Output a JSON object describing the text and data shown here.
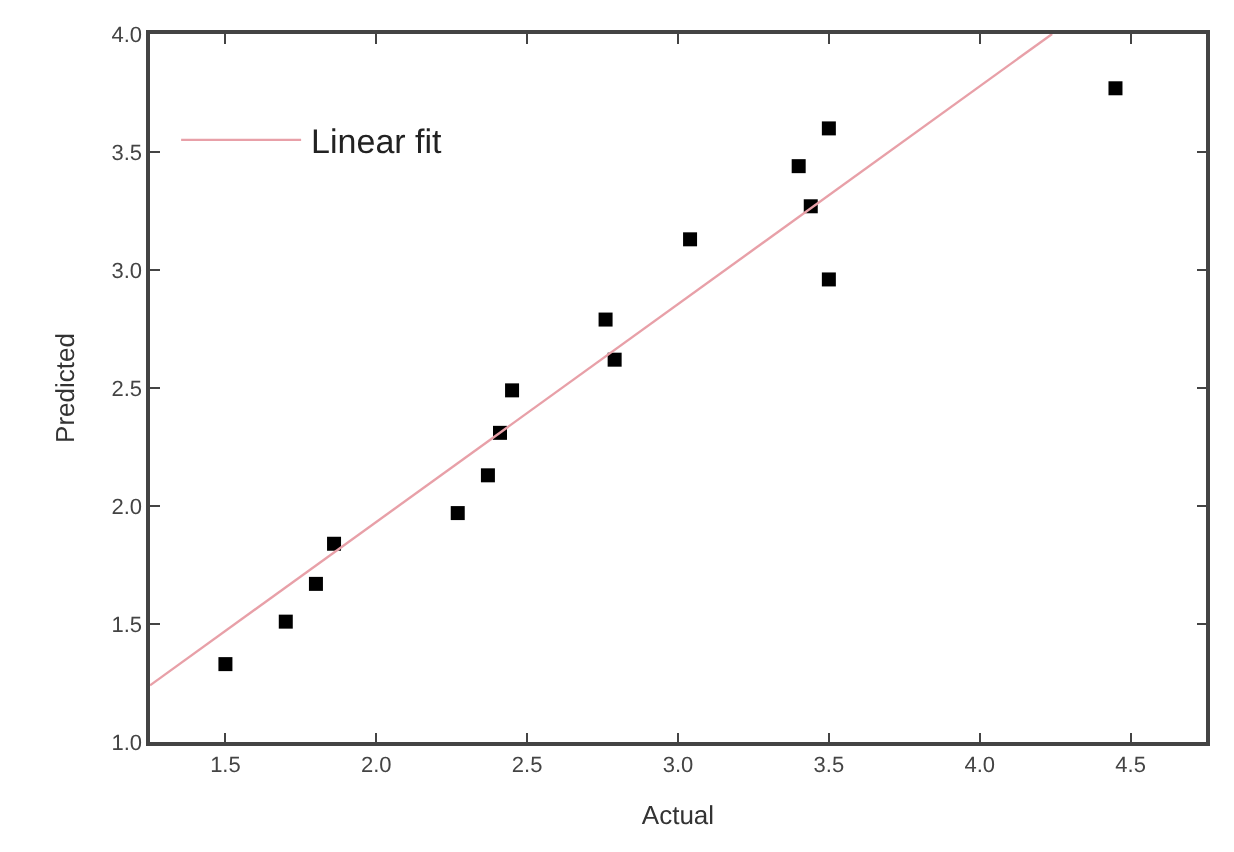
{
  "chart_data": {
    "type": "scatter",
    "xlabel": "Actual",
    "ylabel": "Predicted",
    "xlim": [
      1.25,
      4.75
    ],
    "ylim": [
      1.0,
      4.0
    ],
    "xticks": [
      {
        "value": 1.5,
        "label": "1.5"
      },
      {
        "value": 2.0,
        "label": "2.0"
      },
      {
        "value": 2.5,
        "label": "2.5"
      },
      {
        "value": 3.0,
        "label": "3.0"
      },
      {
        "value": 3.5,
        "label": "3.5"
      },
      {
        "value": 4.0,
        "label": "4.0"
      },
      {
        "value": 4.5,
        "label": "4.5"
      }
    ],
    "yticks": [
      {
        "value": 1.0,
        "label": "1.0"
      },
      {
        "value": 1.5,
        "label": "1.5"
      },
      {
        "value": 2.0,
        "label": "2.0"
      },
      {
        "value": 2.5,
        "label": "2.5"
      },
      {
        "value": 3.0,
        "label": "3.0"
      },
      {
        "value": 3.5,
        "label": "3.5"
      },
      {
        "value": 4.0,
        "label": "4.0"
      }
    ],
    "grid": false,
    "legend": "top left",
    "series": [
      {
        "marker": "square",
        "color": "#000000",
        "x": [
          1.5,
          1.7,
          1.8,
          1.86,
          2.27,
          2.37,
          2.41,
          2.45,
          2.76,
          2.79,
          3.04,
          3.4,
          3.44,
          3.5,
          3.5,
          4.45
        ],
        "values": [
          1.33,
          1.51,
          1.67,
          1.84,
          1.97,
          2.13,
          2.31,
          2.49,
          2.79,
          2.62,
          3.13,
          3.44,
          3.27,
          3.6,
          2.96,
          3.77
        ]
      },
      {
        "type": "line",
        "name": "Linear fit",
        "color": "#e8a0a8",
        "x": [
          1.25,
          4.24
        ],
        "values": [
          1.24,
          4.0
        ],
        "line_style": "solid"
      }
    ]
  }
}
